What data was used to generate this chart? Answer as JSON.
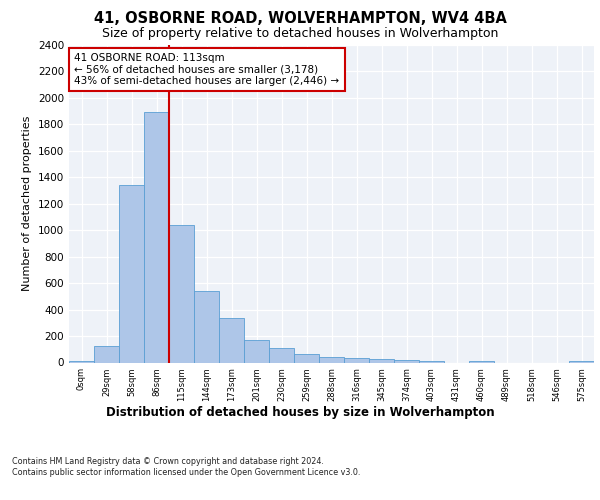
{
  "title1": "41, OSBORNE ROAD, WOLVERHAMPTON, WV4 4BA",
  "title2": "Size of property relative to detached houses in Wolverhampton",
  "xlabel": "Distribution of detached houses by size in Wolverhampton",
  "ylabel": "Number of detached properties",
  "footnote": "Contains HM Land Registry data © Crown copyright and database right 2024.\nContains public sector information licensed under the Open Government Licence v3.0.",
  "bin_labels": [
    "0sqm",
    "29sqm",
    "58sqm",
    "86sqm",
    "115sqm",
    "144sqm",
    "173sqm",
    "201sqm",
    "230sqm",
    "259sqm",
    "288sqm",
    "316sqm",
    "345sqm",
    "374sqm",
    "403sqm",
    "431sqm",
    "460sqm",
    "489sqm",
    "518sqm",
    "546sqm",
    "575sqm"
  ],
  "bar_heights": [
    15,
    125,
    1340,
    1890,
    1040,
    540,
    335,
    170,
    110,
    65,
    40,
    35,
    25,
    20,
    15,
    0,
    15,
    0,
    0,
    0,
    15
  ],
  "bar_color": "#aec6e8",
  "bar_edge_color": "#5a9fd4",
  "property_line_color": "#cc0000",
  "property_line_x": 3.5,
  "annotation_text": "41 OSBORNE ROAD: 113sqm\n← 56% of detached houses are smaller (3,178)\n43% of semi-detached houses are larger (2,446) →",
  "annotation_box_edge_color": "#cc0000",
  "ylim": [
    0,
    2400
  ],
  "yticks": [
    0,
    200,
    400,
    600,
    800,
    1000,
    1200,
    1400,
    1600,
    1800,
    2000,
    2200,
    2400
  ],
  "background_color": "#eef2f8",
  "grid_color": "#ffffff",
  "title1_fontsize": 10.5,
  "title2_fontsize": 9,
  "xlabel_fontsize": 8.5,
  "ylabel_fontsize": 8,
  "tick_fontsize": 7.5,
  "xtick_fontsize": 6,
  "annotation_fontsize": 7.5,
  "footnote_fontsize": 5.8
}
